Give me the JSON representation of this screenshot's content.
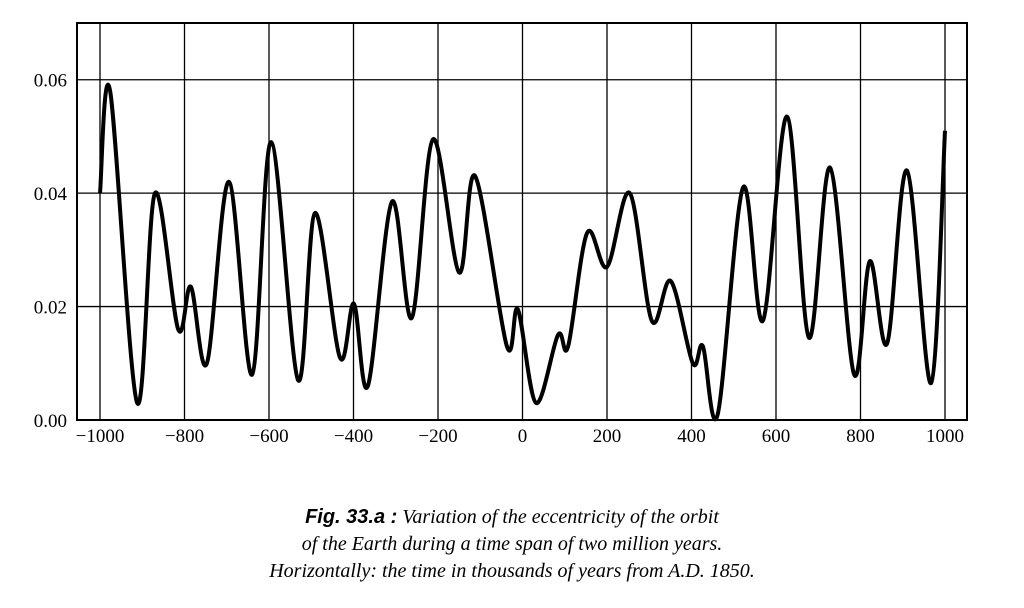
{
  "chart_data": {
    "type": "line",
    "title": "",
    "xlabel": "",
    "ylabel": "",
    "xlim": [
      -1000,
      1000
    ],
    "ylim": [
      0,
      0.07
    ],
    "grid": true,
    "x_ticks": [
      -1000,
      -800,
      -600,
      -400,
      -200,
      0,
      200,
      400,
      600,
      800,
      1000
    ],
    "x_tick_labels": [
      "−1000",
      "−800",
      "−600",
      "−400",
      "−200",
      "0",
      "200",
      "400",
      "600",
      "800",
      "1000"
    ],
    "y_ticks": [
      0,
      0.02,
      0.04,
      0.06
    ],
    "y_tick_labels": [
      "0.00",
      "0.02",
      "0.04",
      "0.06"
    ],
    "series": [
      {
        "name": "eccentricity",
        "color": "#000000",
        "x": [
          -1000,
          -976,
          -912,
          -870,
          -815,
          -785,
          -747,
          -695,
          -640,
          -595,
          -531,
          -491,
          -432,
          -399,
          -366,
          -309,
          -262,
          -212,
          -150,
          -112,
          -37,
          -11,
          32,
          84,
          108,
          153,
          200,
          254,
          306,
          351,
          403,
          427,
          462,
          522,
          569,
          626,
          678,
          728,
          785,
          822,
          863,
          910,
          967,
          1000
        ],
        "y": [
          0.04,
          0.058,
          0.003,
          0.04,
          0.016,
          0.0235,
          0.01,
          0.042,
          0.008,
          0.049,
          0.007,
          0.0365,
          0.011,
          0.0205,
          0.006,
          0.0385,
          0.018,
          0.0495,
          0.026,
          0.043,
          0.013,
          0.0195,
          0.003,
          0.015,
          0.013,
          0.033,
          0.027,
          0.04,
          0.0175,
          0.0245,
          0.01,
          0.013,
          0.001,
          0.041,
          0.0175,
          0.0535,
          0.0145,
          0.0445,
          0.008,
          0.028,
          0.0135,
          0.044,
          0.0065,
          0.051
        ]
      }
    ]
  },
  "caption": {
    "fig_label": "Fig. 33.a :",
    "line1": " Variation of the eccentricity of the orbit",
    "line2": "of the Earth during a time span of two million years.",
    "line3": "Horizontally: the time in thousands of years from A.D. 1850."
  }
}
